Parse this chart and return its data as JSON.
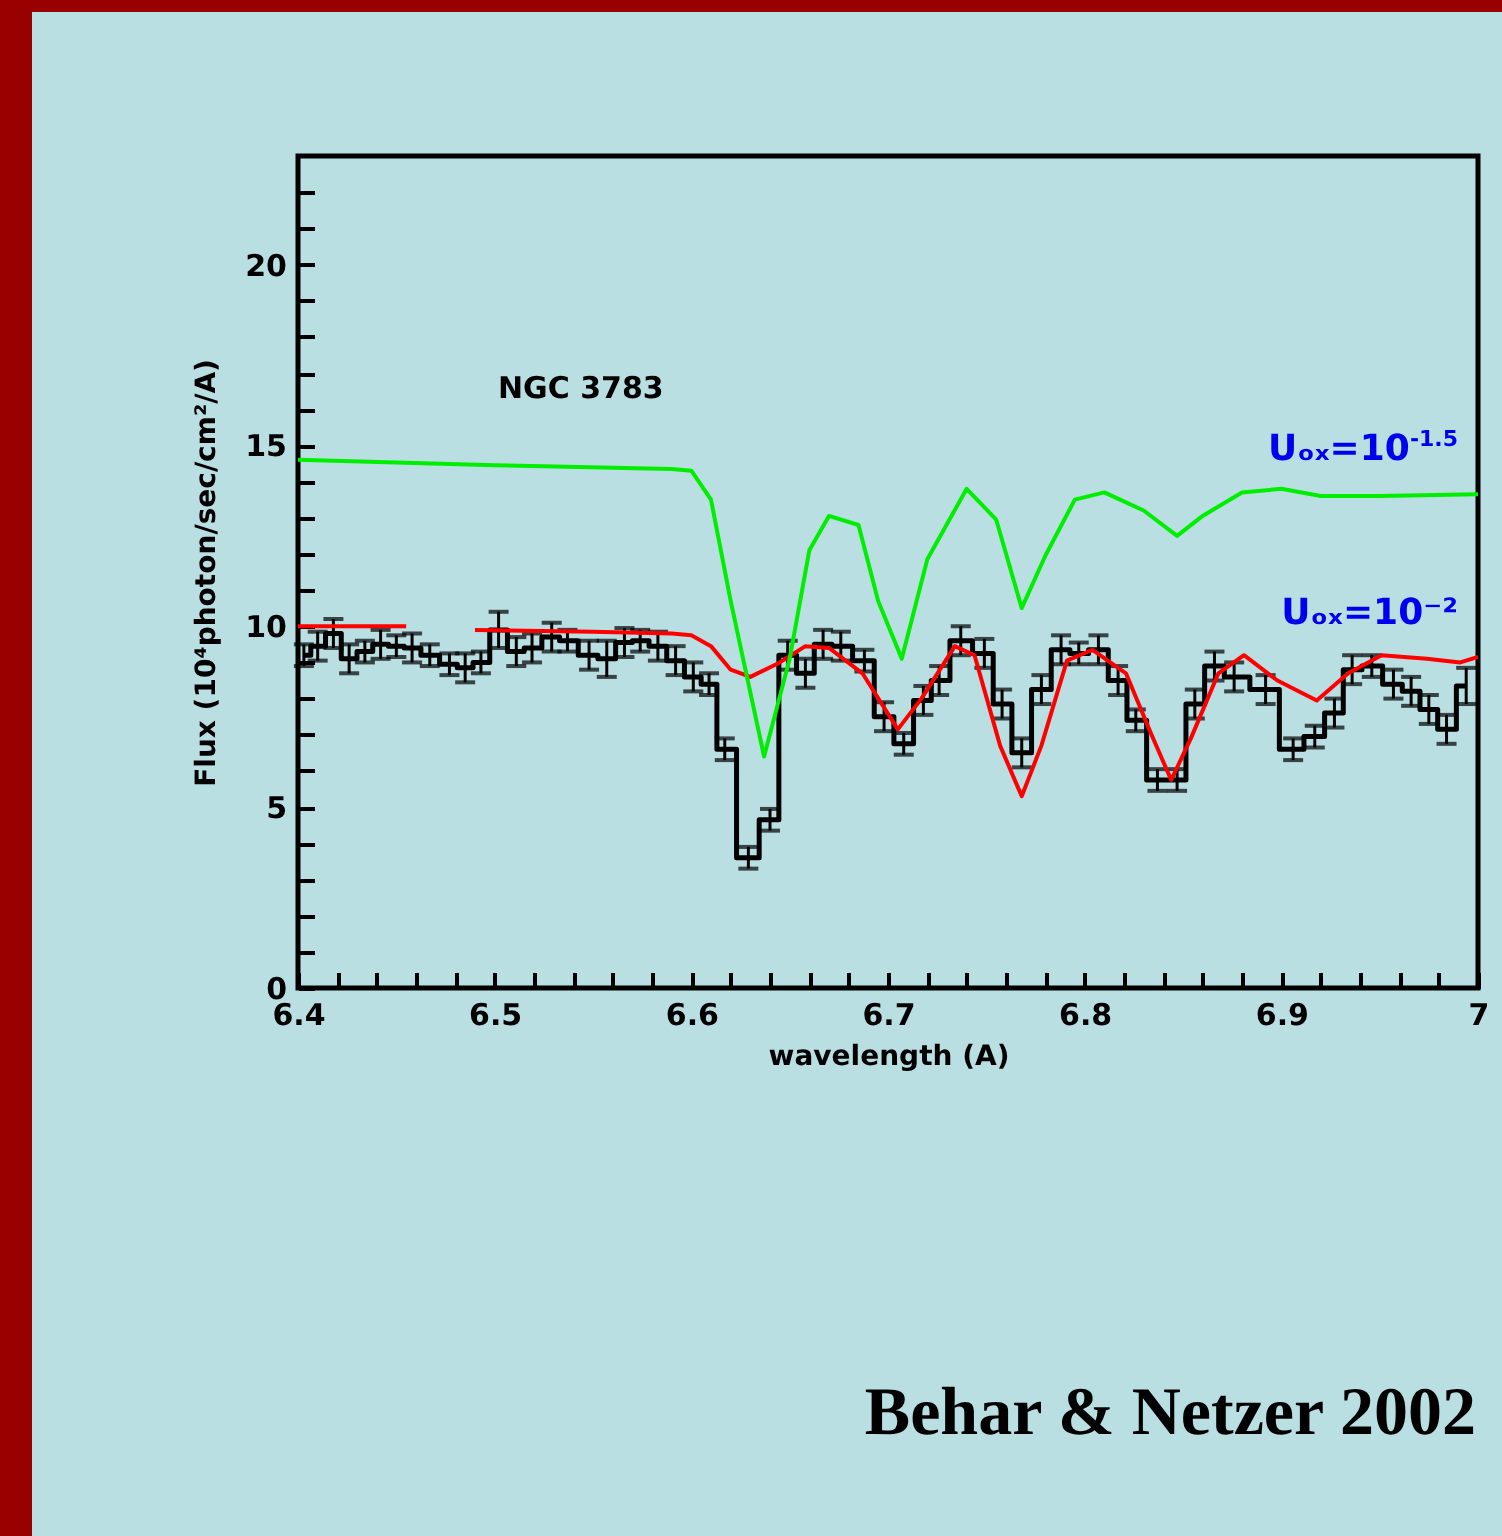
{
  "chart_data": {
    "type": "line",
    "title": "NGC 3783",
    "xlabel": "wavelength (A)",
    "ylabel": "Flux (10⁴photon/sec/cm²/A)",
    "annotations": [
      "Behar & Netzer 2002"
    ],
    "xlim": [
      6.4,
      7.0
    ],
    "ylim": [
      0,
      23
    ],
    "xticks": [
      6.4,
      {
        "value": 6.42,
        "label": null
      },
      {
        "value": 6.44,
        "label": null
      },
      {
        "value": 6.46,
        "label": null
      },
      {
        "value": 6.48,
        "label": null
      },
      6.5,
      {
        "value": 6.52,
        "label": null
      },
      {
        "value": 6.54,
        "label": null
      },
      {
        "value": 6.56,
        "label": null
      },
      {
        "value": 6.58,
        "label": null
      },
      6.6,
      {
        "value": 6.62,
        "label": null
      },
      {
        "value": 6.64,
        "label": null
      },
      {
        "value": 6.66,
        "label": null
      },
      {
        "value": 6.68,
        "label": null
      },
      6.7,
      {
        "value": 6.72,
        "label": null
      },
      {
        "value": 6.74,
        "label": null
      },
      {
        "value": 6.76,
        "label": null
      },
      {
        "value": 6.78,
        "label": null
      },
      6.8,
      {
        "value": 6.82,
        "label": null
      },
      {
        "value": 6.84,
        "label": null
      },
      {
        "value": 6.86,
        "label": null
      },
      {
        "value": 6.88,
        "label": null
      },
      6.9,
      {
        "value": 6.92,
        "label": null
      },
      {
        "value": 6.94,
        "label": null
      },
      {
        "value": 6.96,
        "label": null
      },
      {
        "value": 6.98,
        "label": null
      },
      {
        "value": 7.0,
        "label": "7"
      }
    ],
    "yticks": [
      0,
      {
        "value": 1,
        "label": null
      },
      {
        "value": 2,
        "label": null
      },
      {
        "value": 3,
        "label": null
      },
      {
        "value": 4,
        "label": null
      },
      5,
      {
        "value": 6,
        "label": null
      },
      {
        "value": 7,
        "label": null
      },
      {
        "value": 8,
        "label": null
      },
      {
        "value": 9,
        "label": null
      },
      10,
      {
        "value": 11,
        "label": null
      },
      {
        "value": 12,
        "label": null
      },
      {
        "value": 13,
        "label": null
      },
      {
        "value": 14,
        "label": null
      },
      15,
      {
        "value": 16,
        "label": null
      },
      {
        "value": 17,
        "label": null
      },
      {
        "value": 18,
        "label": null
      },
      {
        "value": 19,
        "label": null
      },
      20,
      {
        "value": 21,
        "label": null
      },
      {
        "value": 22,
        "label": null
      }
    ],
    "grid": false,
    "series": [
      {
        "type": "step",
        "color": "#000000",
        "x": [
          6.403,
          6.41,
          6.418,
          6.426,
          6.434,
          6.442,
          6.45,
          6.458,
          6.467,
          6.477,
          6.485,
          6.493,
          6.502,
          6.511,
          6.519,
          6.529,
          6.537,
          6.548,
          6.557,
          6.566,
          6.574,
          6.583,
          6.592,
          6.601,
          6.609,
          6.617,
          6.629,
          6.64,
          6.649,
          6.658,
          6.667,
          6.676,
          6.688,
          6.698,
          6.708,
          6.718,
          6.726,
          6.737,
          6.749,
          6.758,
          6.768,
          6.778,
          6.788,
          6.797,
          6.807,
          6.817,
          6.826,
          6.837,
          6.847,
          6.856,
          6.866,
          6.876,
          6.892,
          6.906,
          6.917,
          6.927,
          6.936,
          6.946,
          6.957,
          6.966,
          6.975,
          6.984,
          6.994
        ],
        "values": [
          9.2,
          9.45,
          9.8,
          9.1,
          9.3,
          9.5,
          9.45,
          9.4,
          9.2,
          8.95,
          8.85,
          9.0,
          9.9,
          9.3,
          9.4,
          9.7,
          9.6,
          9.2,
          9.1,
          9.55,
          9.6,
          9.45,
          9.05,
          8.6,
          8.4,
          6.6,
          3.6,
          4.65,
          9.2,
          8.7,
          9.5,
          9.45,
          9.05,
          7.5,
          6.75,
          7.95,
          8.5,
          9.6,
          9.25,
          7.85,
          6.5,
          8.25,
          9.35,
          9.25,
          9.35,
          8.5,
          7.4,
          5.75,
          5.75,
          7.85,
          8.9,
          8.6,
          8.25,
          6.6,
          6.95,
          7.6,
          8.8,
          8.9,
          8.4,
          8.2,
          7.7,
          7.15,
          8.35
        ],
        "errors": [
          0.3,
          0.4,
          0.4,
          0.4,
          0.3,
          0.4,
          0.3,
          0.4,
          0.3,
          0.3,
          0.4,
          0.3,
          0.5,
          0.4,
          0.4,
          0.4,
          0.3,
          0.4,
          0.5,
          0.4,
          0.3,
          0.4,
          0.4,
          0.4,
          0.3,
          0.3,
          0.3,
          0.3,
          0.4,
          0.4,
          0.4,
          0.4,
          0.3,
          0.4,
          0.3,
          0.4,
          0.4,
          0.4,
          0.4,
          0.4,
          0.4,
          0.4,
          0.4,
          0.3,
          0.4,
          0.4,
          0.3,
          0.3,
          0.3,
          0.4,
          0.4,
          0.4,
          0.4,
          0.3,
          0.3,
          0.4,
          0.4,
          0.3,
          0.4,
          0.4,
          0.4,
          0.4,
          0.5
        ]
      },
      {
        "type": "line",
        "name": "Uₒₓ=10⁻²",
        "color": "#ff0000",
        "x": [
          6.4,
          6.455,
          6.47,
          6.49,
          6.55,
          6.59,
          6.6,
          6.61,
          6.62,
          6.63,
          6.645,
          6.658,
          6.67,
          6.687,
          6.705,
          6.717,
          6.734,
          6.744,
          6.757,
          6.768,
          6.778,
          6.791,
          6.804,
          6.821,
          6.834,
          6.844,
          6.854,
          6.868,
          6.881,
          6.898,
          6.918,
          6.934,
          6.951,
          6.974,
          6.991,
          7.0
        ],
        "values": [
          10.0,
          10.0,
          null,
          9.9,
          9.85,
          9.8,
          9.75,
          9.45,
          8.8,
          8.6,
          9.0,
          9.45,
          9.4,
          8.7,
          7.15,
          8.0,
          9.45,
          9.2,
          6.7,
          5.3,
          6.7,
          9.05,
          9.35,
          8.7,
          7.0,
          5.75,
          6.9,
          8.7,
          9.2,
          8.5,
          7.95,
          8.7,
          9.2,
          9.1,
          9.0,
          9.15
        ]
      },
      {
        "type": "line",
        "name": "Uₒₓ=10$^{-1.5}$",
        "color": "#00ee00",
        "x": [
          6.4,
          6.5,
          6.59,
          6.6,
          6.61,
          6.62,
          6.637,
          6.65,
          6.66,
          6.67,
          6.685,
          6.695,
          6.707,
          6.72,
          6.74,
          6.755,
          6.768,
          6.78,
          6.795,
          6.81,
          6.83,
          6.847,
          6.86,
          6.88,
          6.9,
          6.92,
          6.95,
          7.0
        ],
        "values": [
          14.6,
          14.45,
          14.35,
          14.3,
          13.5,
          10.7,
          6.4,
          9.1,
          12.1,
          13.05,
          12.8,
          10.7,
          9.1,
          11.85,
          13.8,
          12.95,
          10.5,
          11.95,
          13.5,
          13.7,
          13.2,
          12.5,
          13.05,
          13.7,
          13.8,
          13.6,
          13.6,
          13.65
        ]
      }
    ]
  }
}
